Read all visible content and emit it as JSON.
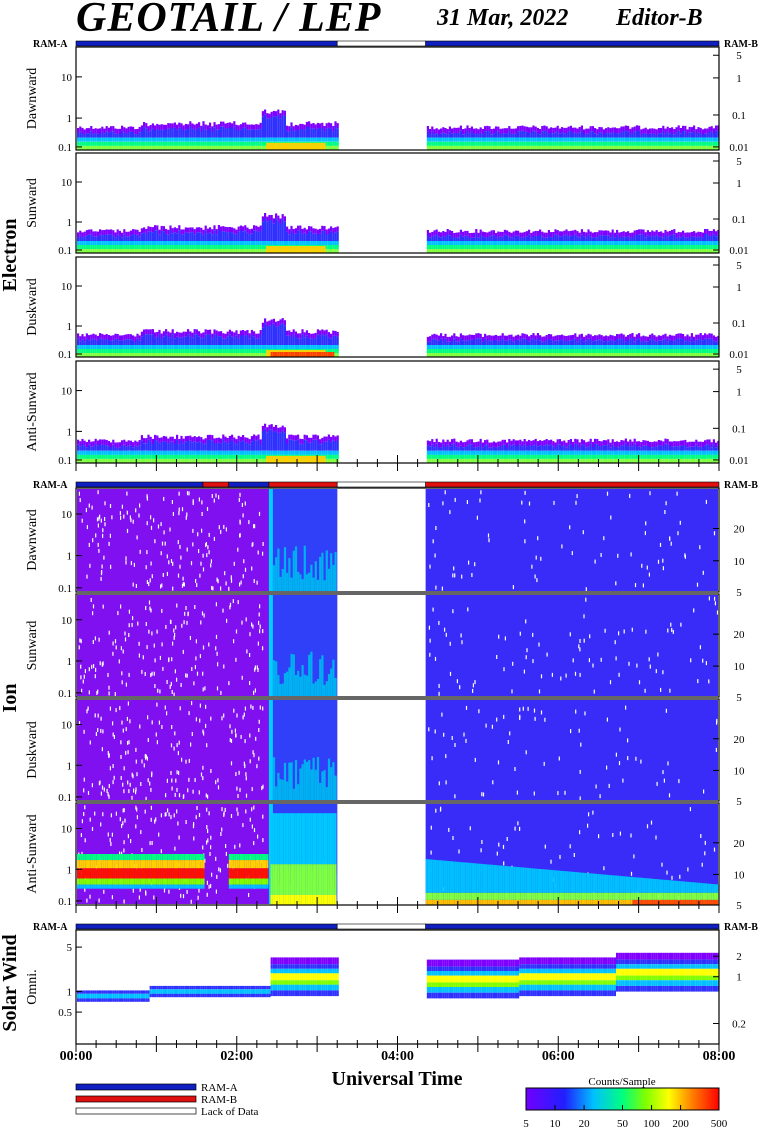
{
  "header": {
    "title": "GEOTAIL / LEP",
    "date": "31 Mar, 2022",
    "editor": "Editor-B"
  },
  "chart_data": {
    "type": "heatmap",
    "xlabel": "Universal Time",
    "x_ticks": [
      "00:00",
      "02:00",
      "04:00",
      "06:00",
      "08:00"
    ],
    "x_range_hours": [
      0,
      8
    ],
    "data_gap_hours": [
      3.25,
      4.35
    ],
    "ram_labels": {
      "left": "RAM-A",
      "right": "RAM-B"
    },
    "groups": [
      {
        "name": "Electron",
        "ram_bar": [
          {
            "from": 0,
            "to": 3.25,
            "state": "RAM-A"
          },
          {
            "from": 3.25,
            "to": 4.35,
            "state": "Lack of Data"
          },
          {
            "from": 4.35,
            "to": 8,
            "state": "RAM-A"
          }
        ],
        "left_ticks": [
          "10",
          "1",
          "0.1"
        ],
        "right_ticks": [
          "5",
          "1",
          "0.1",
          "0.01"
        ],
        "panels": [
          {
            "label": "Dawnward"
          },
          {
            "label": "Sunward"
          },
          {
            "label": "Duskward"
          },
          {
            "label": "Anti-Sunward"
          }
        ]
      },
      {
        "name": "Ion",
        "ram_bar": [
          {
            "from": 0,
            "to": 1.58,
            "state": "RAM-A"
          },
          {
            "from": 1.58,
            "to": 1.9,
            "state": "RAM-B"
          },
          {
            "from": 1.9,
            "to": 2.4,
            "state": "RAM-A"
          },
          {
            "from": 2.4,
            "to": 3.25,
            "state": "RAM-B"
          },
          {
            "from": 3.25,
            "to": 4.35,
            "state": "Lack of Data"
          },
          {
            "from": 4.35,
            "to": 8,
            "state": "RAM-B"
          }
        ],
        "left_ticks": [
          "10",
          "1",
          "0.1"
        ],
        "right_ticks": [
          "20",
          "10",
          "5"
        ],
        "panels": [
          {
            "label": "Dawnward"
          },
          {
            "label": "Sunward"
          },
          {
            "label": "Duskward"
          },
          {
            "label": "Anti-Sunward"
          }
        ]
      },
      {
        "name": "Solar Wind",
        "ram_bar": [
          {
            "from": 0,
            "to": 3.25,
            "state": "RAM-A"
          },
          {
            "from": 3.25,
            "to": 4.35,
            "state": "Lack of Data"
          },
          {
            "from": 4.35,
            "to": 8,
            "state": "RAM-A"
          }
        ],
        "left_ticks": [
          "5",
          "1",
          "0.5"
        ],
        "right_ticks": [
          "2",
          "1",
          "0.2"
        ],
        "panels": [
          {
            "label": "Omni."
          }
        ]
      }
    ],
    "legend": {
      "items": [
        {
          "label": "RAM-A",
          "color": "#1020c0"
        },
        {
          "label": "RAM-B",
          "color": "#e01010"
        },
        {
          "label": "Lack of Data",
          "color": "#ffffff"
        }
      ]
    },
    "colorbar": {
      "title": "Counts/Sample",
      "ticks": [
        "5",
        "10",
        "20",
        "50",
        "100",
        "200",
        "500"
      ],
      "scale": "log",
      "range": [
        5,
        500
      ],
      "colors": [
        "#ffffff",
        "#8000ff",
        "#2020ff",
        "#00c0ff",
        "#00ff80",
        "#80ff00",
        "#ffff00",
        "#ff8000",
        "#ff0000"
      ]
    }
  }
}
